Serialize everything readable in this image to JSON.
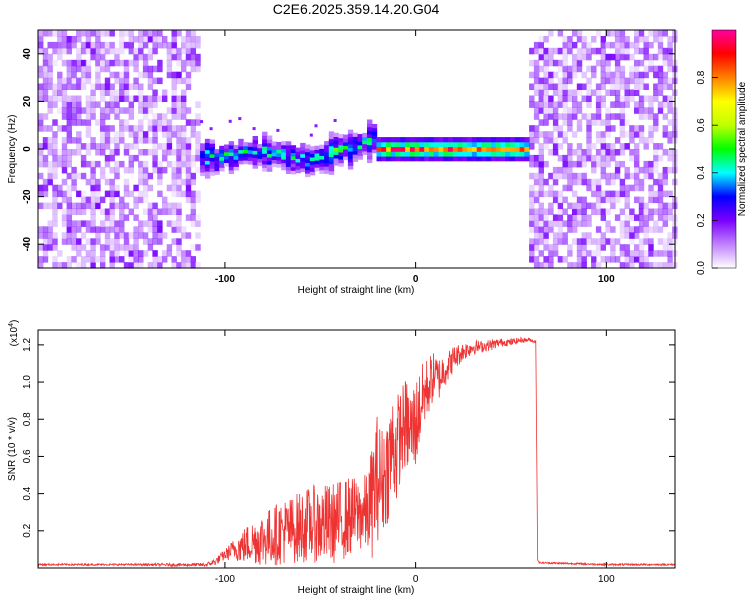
{
  "title": "C2E6.2025.359.14.20.G04",
  "chart_data": [
    {
      "type": "heatmap",
      "name": "spectrogram",
      "xlabel": "Height of straight line (km)",
      "ylabel": "Frequency (Hz)",
      "xlim": [
        -198,
        136
      ],
      "ylim": [
        -50,
        50
      ],
      "x_ticks": [
        -100,
        0,
        100
      ],
      "y_ticks": [
        -40,
        -20,
        0,
        20,
        40
      ],
      "colorbar": {
        "label": "Normalized spectral amplitude",
        "range": [
          0,
          1
        ],
        "ticks": [
          "0.0",
          "0.2",
          "0.4",
          "0.6",
          "0.8"
        ],
        "colors": [
          "#ffffff",
          "#c080ff",
          "#7a00ff",
          "#0000ff",
          "#00ffff",
          "#00ff00",
          "#c0ff00",
          "#ffff00",
          "#ff8000",
          "#ff0000",
          "#ff00a0"
        ]
      },
      "regions": [
        {
          "name": "noise-left",
          "x_range": [
            -198,
            -114
          ],
          "amplitude": 0.15
        },
        {
          "name": "signal-broad",
          "x_range": [
            -114,
            -22
          ],
          "center_hz": [
            -5,
            -3,
            -2,
            -3,
            -5,
            0,
            4
          ],
          "amplitude": 0.4
        },
        {
          "name": "signal-narrow",
          "x_range": [
            -22,
            58
          ],
          "center_hz": 0,
          "amplitude": 0.85
        },
        {
          "name": "noise-right",
          "x_range": [
            58,
            136
          ],
          "amplitude": 0.15
        }
      ]
    },
    {
      "type": "line",
      "name": "snr-profile",
      "xlabel": "Height of straight line (km)",
      "ylabel": "SNR (10 * v/v)",
      "y_multiplier": "(x10",
      "y_multiplier_exp": "4",
      "y_multiplier_close": ")",
      "xlim": [
        -198,
        136
      ],
      "ylim": [
        0,
        1.28
      ],
      "x_ticks": [
        -100,
        0,
        100
      ],
      "y_ticks": [
        "0.2",
        "0.4",
        "0.6",
        "0.8",
        "1.0",
        "1.2"
      ],
      "color": "#ee3333",
      "series": {
        "x": [
          -198,
          -150,
          -110,
          -105,
          -100,
          -95,
          -90,
          -85,
          -80,
          -75,
          -70,
          -65,
          -60,
          -55,
          -50,
          -45,
          -40,
          -35,
          -30,
          -25,
          -22,
          -20,
          -18,
          -15,
          -12,
          -10,
          -8,
          -5,
          -3,
          0,
          3,
          5,
          8,
          10,
          12,
          15,
          18,
          20,
          25,
          30,
          35,
          40,
          45,
          50,
          55,
          60,
          63,
          64,
          65,
          100,
          136
        ],
        "y": [
          0.02,
          0.02,
          0.02,
          0.04,
          0.08,
          0.12,
          0.15,
          0.18,
          0.2,
          0.22,
          0.25,
          0.26,
          0.28,
          0.3,
          0.3,
          0.3,
          0.32,
          0.34,
          0.35,
          0.36,
          0.5,
          0.6,
          0.55,
          0.62,
          0.75,
          0.72,
          0.8,
          0.85,
          0.8,
          0.85,
          0.95,
          1.0,
          1.05,
          1.08,
          1.05,
          1.1,
          1.12,
          1.15,
          1.18,
          1.2,
          1.2,
          1.21,
          1.22,
          1.22,
          1.23,
          1.23,
          1.22,
          0.05,
          0.03,
          0.02,
          0.02
        ],
        "noise_amplitude": [
          0.005,
          0.005,
          0.01,
          0.02,
          0.03,
          0.06,
          0.1,
          0.12,
          0.15,
          0.16,
          0.18,
          0.18,
          0.2,
          0.2,
          0.22,
          0.22,
          0.22,
          0.22,
          0.2,
          0.22,
          0.35,
          0.35,
          0.3,
          0.3,
          0.3,
          0.3,
          0.25,
          0.25,
          0.25,
          0.25,
          0.2,
          0.18,
          0.15,
          0.12,
          0.12,
          0.1,
          0.08,
          0.07,
          0.05,
          0.04,
          0.03,
          0.03,
          0.02,
          0.02,
          0.015,
          0.01,
          0.01,
          0.01,
          0.005,
          0.005,
          0.005
        ]
      }
    }
  ]
}
